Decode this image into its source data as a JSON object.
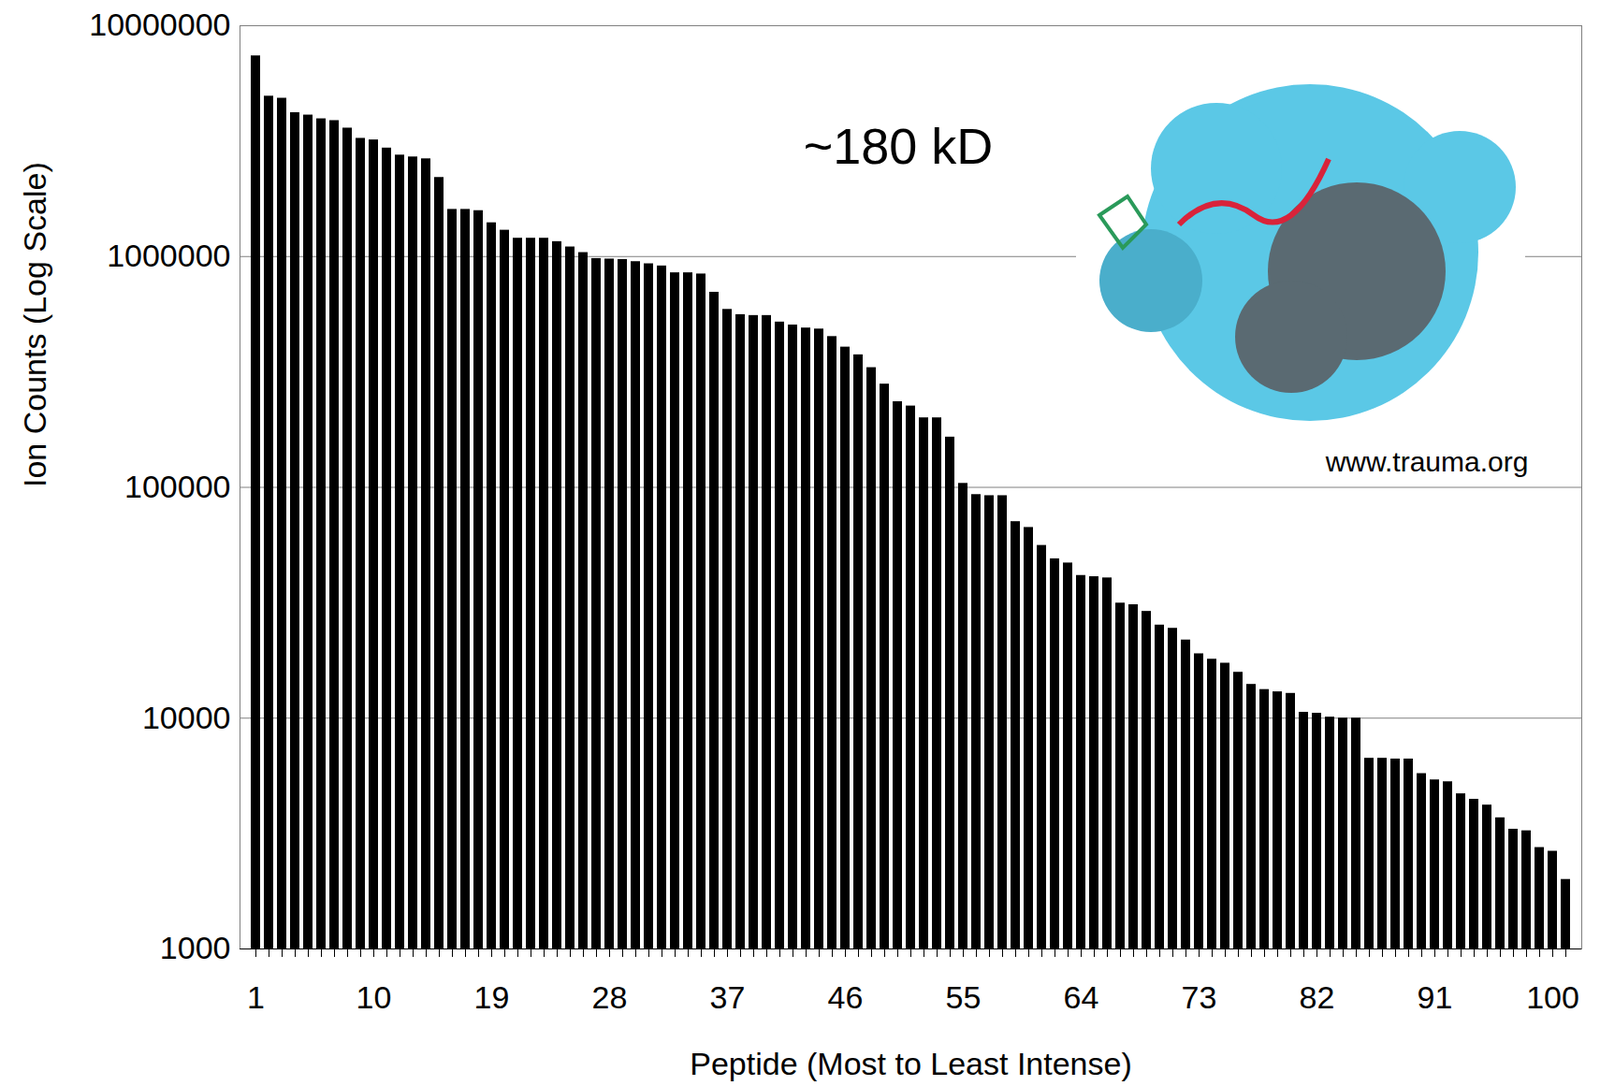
{
  "chart_data": {
    "type": "bar",
    "x_label": "Peptide (Most to Least Intense)",
    "y_label": "Ion Counts (Log Scale)",
    "annotations": [
      "~180 kD",
      "www.trauma.org"
    ],
    "categories": [
      1,
      2,
      3,
      4,
      5,
      6,
      7,
      8,
      9,
      10,
      11,
      12,
      13,
      14,
      15,
      16,
      17,
      18,
      19,
      20,
      21,
      22,
      23,
      24,
      25,
      26,
      27,
      28,
      29,
      30,
      31,
      32,
      33,
      34,
      35,
      36,
      37,
      38,
      39,
      40,
      41,
      42,
      43,
      44,
      45,
      46,
      47,
      48,
      49,
      50,
      51,
      52,
      53,
      54,
      55,
      56,
      57,
      58,
      59,
      60,
      61,
      62,
      63,
      64,
      65,
      66,
      67,
      68,
      69,
      70,
      71,
      72,
      73,
      74,
      75,
      76,
      77,
      78,
      79,
      80,
      81,
      82,
      83,
      84,
      85,
      86,
      87,
      88,
      89,
      90,
      91,
      92,
      93,
      94,
      95,
      96,
      97,
      98,
      99,
      100,
      101
    ],
    "values": [
      7400000,
      4950000,
      4850000,
      4200000,
      4100000,
      3950000,
      3880000,
      3600000,
      3250000,
      3200000,
      2950000,
      2750000,
      2700000,
      2650000,
      2200000,
      1600000,
      1600000,
      1580000,
      1400000,
      1300000,
      1200000,
      1200000,
      1200000,
      1160000,
      1100000,
      1040000,
      980000,
      975000,
      970000,
      950000,
      930000,
      910000,
      850000,
      850000,
      840000,
      700000,
      590000,
      560000,
      555000,
      555000,
      520000,
      505000,
      490000,
      485000,
      450000,
      405000,
      375000,
      330000,
      280000,
      235000,
      225000,
      200000,
      200000,
      165000,
      104000,
      93000,
      92000,
      92000,
      71000,
      67000,
      56000,
      49000,
      47000,
      41500,
      41000,
      40500,
      31500,
      31000,
      29000,
      25300,
      24500,
      21800,
      19000,
      18000,
      17300,
      15800,
      14000,
      13300,
      13000,
      12800,
      10600,
      10500,
      10100,
      10000,
      10000,
      6700,
      6700,
      6650,
      6650,
      5750,
      5400,
      5300,
      4700,
      4450,
      4200,
      3700,
      3300,
      3250,
      2750,
      2650,
      2000
    ],
    "color": "#000000",
    "log": "y",
    "ylim": [
      1000,
      10000000
    ],
    "yticks": [
      1000,
      10000,
      100000,
      1000000,
      10000000
    ],
    "xticks": [
      1,
      10,
      19,
      28,
      37,
      46,
      55,
      64,
      73,
      82,
      91,
      100
    ],
    "grid": true
  }
}
